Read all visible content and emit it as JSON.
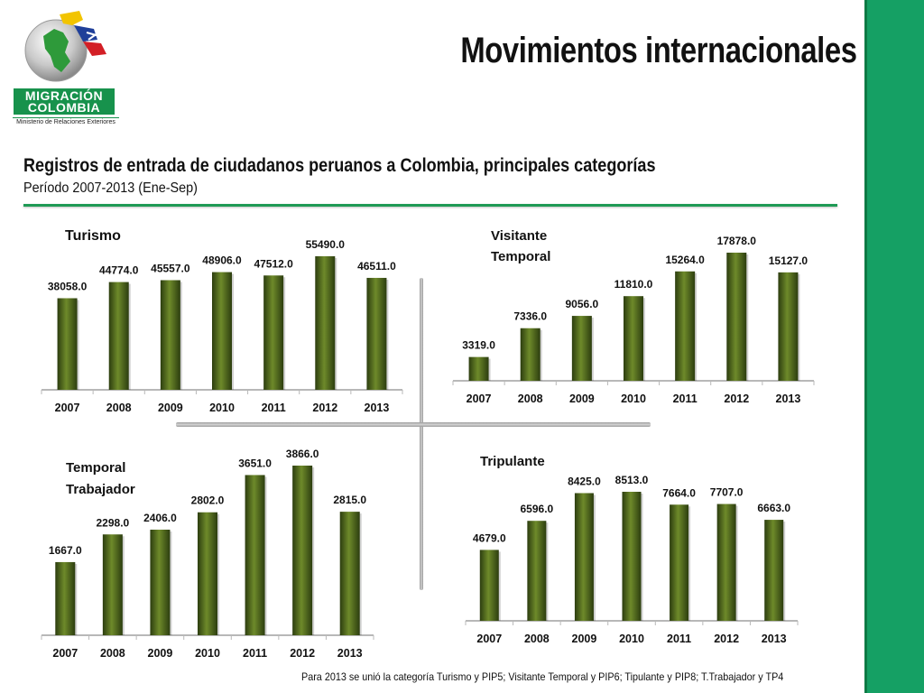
{
  "brand": {
    "line1": "MIGRACIÓN",
    "line2": "COLOMBIA",
    "sub": "Ministerio de Relaciones Exteriores"
  },
  "title": "Movimientos internacionales",
  "subtitle": "Registros de entrada de ciudadanos peruanos a Colombia, principales categorías",
  "period": "Período 2007-2013 (Ene-Sep)",
  "footnote": "Para 2013 se unió la categoría Turismo y PIP5; Visitante Temporal y PIP6; Tipulante y PIP8; T.Trabajador y TP4",
  "colors": {
    "accent": "#17924c",
    "side_bar": "#15a064",
    "bar_dark": "#2c3d0f",
    "bar_light": "#6e8a2a"
  },
  "chart_data": [
    {
      "type": "bar",
      "title": [
        "Turismo"
      ],
      "categories": [
        "2007",
        "2008",
        "2009",
        "2010",
        "2011",
        "2012",
        "2013"
      ],
      "values": [
        38058.0,
        44774.0,
        45557.0,
        48906.0,
        47512.0,
        55490.0,
        46511.0
      ],
      "value_labels": [
        "38058.0",
        "44774.0",
        "45557.0",
        "48906.0",
        "47512.0",
        "55490.0",
        "46511.0"
      ],
      "ylim": [
        0,
        55490
      ]
    },
    {
      "type": "bar",
      "title": [
        "Visitante",
        "Temporal"
      ],
      "categories": [
        "2007",
        "2008",
        "2009",
        "2010",
        "2011",
        "2012",
        "2013"
      ],
      "values": [
        3319.0,
        7336.0,
        9056.0,
        11810.0,
        15264.0,
        17878.0,
        15127.0
      ],
      "value_labels": [
        "3319.0",
        "7336.0",
        "9056.0",
        "11810.0",
        "15264.0",
        "17878.0",
        "15127.0"
      ],
      "ylim": [
        0,
        17878
      ]
    },
    {
      "type": "bar",
      "title": [
        "Temporal",
        "Trabajador"
      ],
      "categories": [
        "2007",
        "2008",
        "2009",
        "2010",
        "2011",
        "2012",
        "2013"
      ],
      "values": [
        1667.0,
        2298.0,
        2406.0,
        2802.0,
        3651.0,
        3866.0,
        2815.0
      ],
      "value_labels": [
        "1667.0",
        "2298.0",
        "2406.0",
        "2802.0",
        "3651.0",
        "3866.0",
        "2815.0"
      ],
      "ylim": [
        0,
        3866
      ]
    },
    {
      "type": "bar",
      "title": [
        "Tripulante"
      ],
      "categories": [
        "2007",
        "2008",
        "2009",
        "2010",
        "2011",
        "2012",
        "2013"
      ],
      "values": [
        4679.0,
        6596.0,
        8425.0,
        8513.0,
        7664.0,
        7707.0,
        6663.0
      ],
      "value_labels": [
        "4679.0",
        "6596.0",
        "8425.0",
        "8513.0",
        "7664.0",
        "7707.0",
        "6663.0"
      ],
      "ylim": [
        0,
        8513
      ]
    }
  ]
}
